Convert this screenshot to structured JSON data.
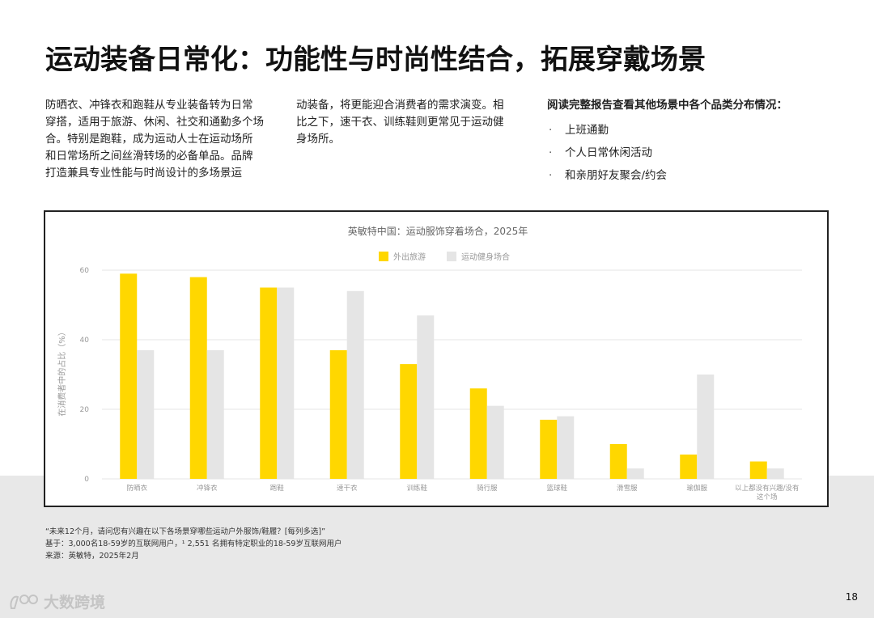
{
  "page": {
    "title": "运动装备日常化：功能性与时尚性结合，拓展穿戴场景",
    "page_number": "18"
  },
  "intro": {
    "col1_lines": [
      "防晒衣、冲锋衣和跑鞋从专业装备转为日常",
      "穿搭，适用于旅游、休闲、社交和通勤多个场",
      "合。特别是跑鞋，成为运动人士在运动场所",
      "和日常场所之间丝滑转场的必备单品。品牌",
      "打造兼具专业性能与时尚设计的多场景运"
    ],
    "col2_lines": [
      "动装备，将更能迎合消费者的需求演变。相",
      "比之下，速干衣、训练鞋则更常见于运动健",
      "身场所。"
    ],
    "col3_heading": "阅读完整报告查看其他场景中各个品类分布情况：",
    "col3_bullets": [
      "上班通勤",
      "个人日常休闲活动",
      "和亲朋好友聚会/约会"
    ],
    "bullet_symbol": "·"
  },
  "footnotes": {
    "line1": "“未来12个月，请问您有兴趣在以下各场景穿哪些运动户外服饰/鞋履？[每列多选]”",
    "line2": "基于：3,000名18-59岁的互联网用户，¹ 2,551 名拥有特定职业的18-59岁互联网用户",
    "line3": "来源：英敏特，2025年2月"
  },
  "logo": {
    "text": "大数跨境"
  },
  "colors": {
    "series1": "#FFD700",
    "series2": "#E5E5E5",
    "grid": "#E6E6E6",
    "axis_text": "#999999"
  },
  "chart_data": {
    "type": "bar",
    "title": "英敏特中国：运动服饰穿着场合，2025年",
    "ylabel": "在消费者中的占比（%）",
    "xlabel": "",
    "ylim": [
      0,
      60
    ],
    "yticks": [
      0,
      20,
      40,
      60
    ],
    "legend_position": "top-center",
    "categories": [
      "防晒衣",
      "冲锋衣",
      "跑鞋",
      "速干衣",
      "训练鞋",
      "骑行服",
      "篮球鞋",
      "滑雪服",
      "瑜伽服",
      "以上都没有兴趣/没有这个场"
    ],
    "series": [
      {
        "name": "外出旅游",
        "values": [
          59,
          58,
          55,
          37,
          33,
          26,
          17,
          10,
          7,
          5
        ]
      },
      {
        "name": "运动健身场合",
        "values": [
          37,
          37,
          55,
          54,
          47,
          21,
          18,
          3,
          30,
          3
        ]
      }
    ]
  }
}
